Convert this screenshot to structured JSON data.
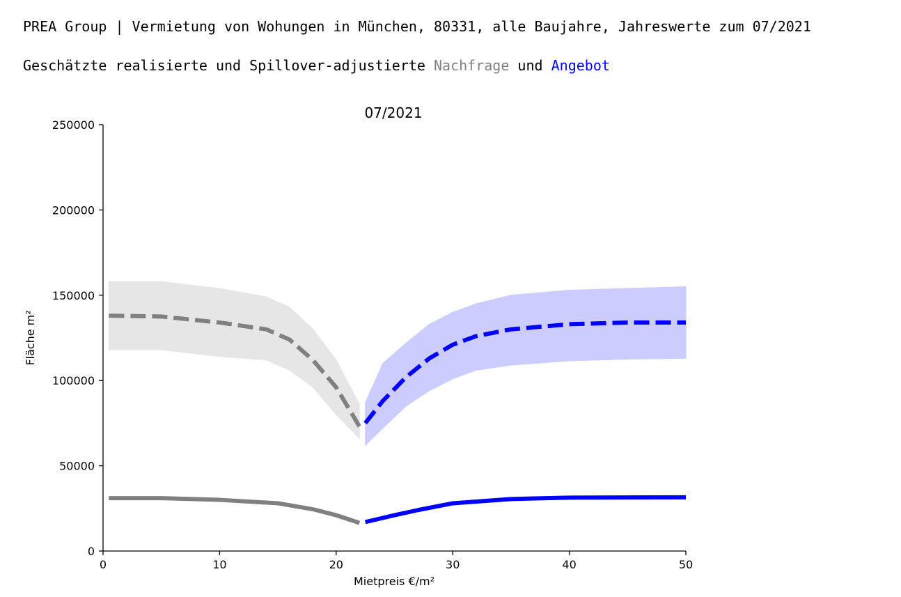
{
  "header": {
    "title": "PREA Group | Vermietung von Wohungen in München, 80331, alle Baujahre, Jahreswerte zum 07/2021",
    "subtitle_prefix": "Geschätzte realisierte und Spillover-adjustierte ",
    "subtitle_nachfrage": "Nachfrage",
    "subtitle_und": " und ",
    "subtitle_angebot": "Angebot"
  },
  "colors": {
    "nachfrage": "#808080",
    "nachfrage_band": "#e6e6e6",
    "angebot": "#0000ff",
    "angebot_band": "#ccccff"
  },
  "chart_data": {
    "type": "line",
    "title": "07/2021",
    "xlabel": "Mietpreis €/m²",
    "ylabel": "Fläche m²",
    "xlim": [
      0,
      50
    ],
    "ylim": [
      0,
      250000
    ],
    "xticks": [
      0,
      10,
      20,
      30,
      40,
      50
    ],
    "yticks": [
      0,
      50000,
      100000,
      150000,
      200000,
      250000
    ],
    "grid": false,
    "series": [
      {
        "style": "dashed-with-band",
        "color": "nachfrage",
        "x": [
          0.5,
          5,
          10,
          14,
          16,
          18,
          20,
          22
        ],
        "y": [
          138000,
          137500,
          134000,
          130000,
          124000,
          112000,
          96000,
          73000
        ],
        "lower": [
          118000,
          118000,
          114000,
          112000,
          106000,
          96000,
          80000,
          66000
        ],
        "upper": [
          158000,
          158000,
          154000,
          149000,
          143000,
          130000,
          112000,
          86000
        ]
      },
      {
        "style": "dashed-with-band",
        "color": "angebot",
        "x": [
          22.5,
          24,
          26,
          28,
          30,
          32,
          35,
          40,
          45,
          50
        ],
        "y": [
          75000,
          88000,
          102000,
          113000,
          121000,
          126000,
          130000,
          133000,
          134000,
          134000
        ],
        "lower": [
          62000,
          72000,
          85000,
          94000,
          101000,
          106000,
          109000,
          111500,
          112500,
          113000
        ],
        "upper": [
          87000,
          110000,
          122000,
          133000,
          140000,
          145000,
          150000,
          153000,
          154000,
          155000
        ]
      },
      {
        "style": "solid",
        "color": "nachfrage",
        "x": [
          0.5,
          5,
          10,
          15,
          18,
          20,
          22
        ],
        "y": [
          31000,
          31000,
          30000,
          28000,
          24500,
          21000,
          16500
        ]
      },
      {
        "style": "solid",
        "color": "angebot",
        "x": [
          22.5,
          25,
          27,
          30,
          35,
          40,
          50
        ],
        "y": [
          17000,
          21000,
          24000,
          28000,
          30500,
          31300,
          31500
        ]
      }
    ]
  }
}
